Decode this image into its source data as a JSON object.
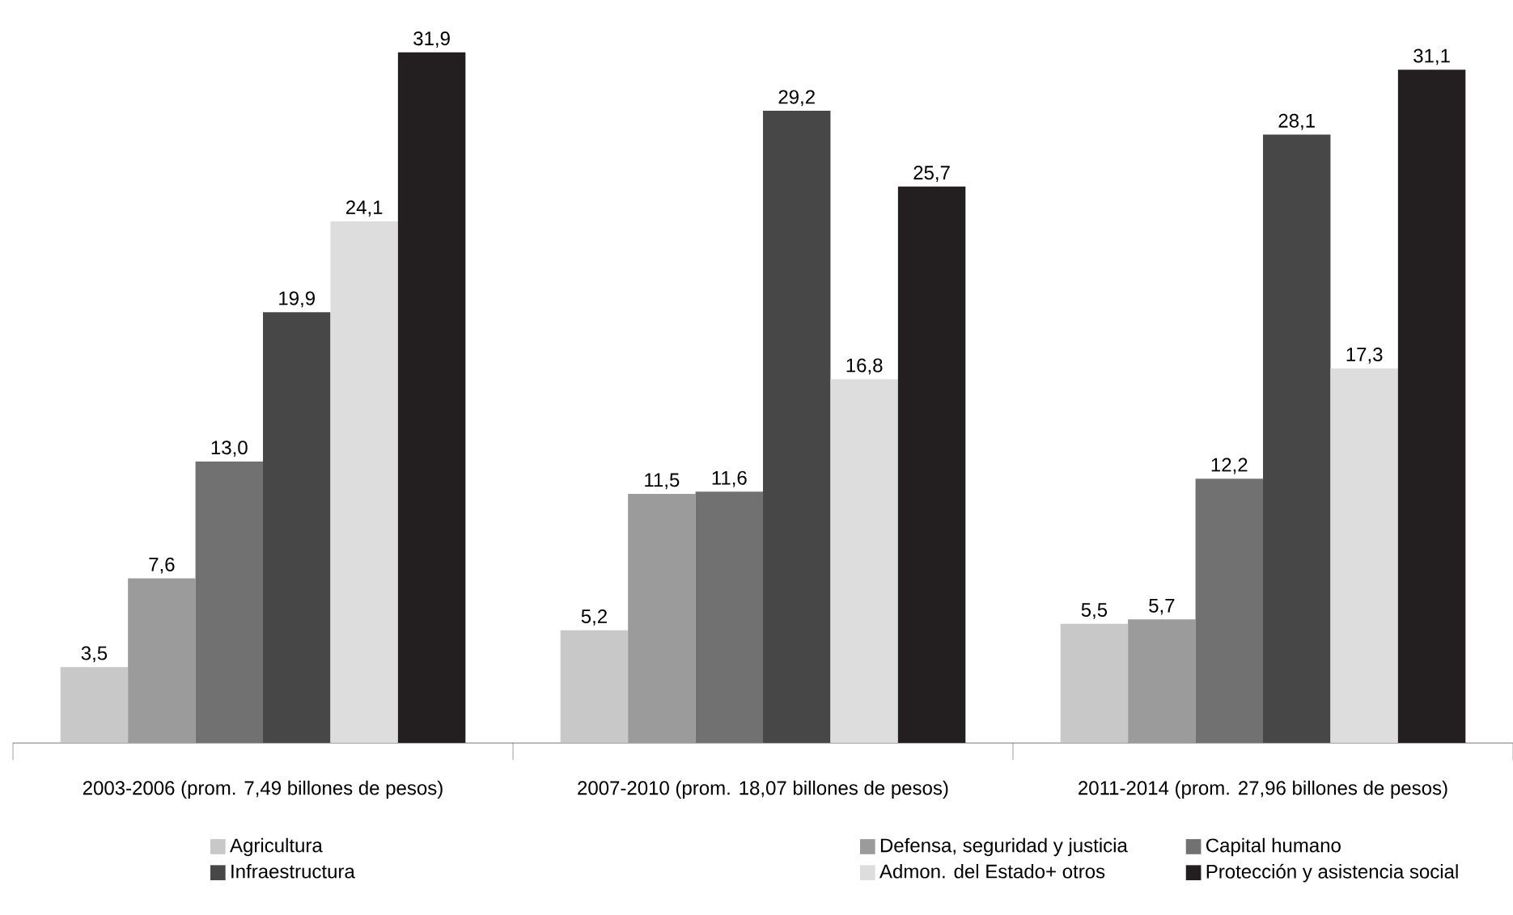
{
  "chart_data": {
    "type": "bar",
    "categories": [
      "2003-2006 (prom. 7,49 billones de pesos)",
      "2007-2010 (prom. 18,07 billones de pesos)",
      "2011-2014 (prom. 27,96 billones de pesos)"
    ],
    "series": [
      {
        "name": "Agricultura",
        "color": "#c8c8c8",
        "values": [
          3.5,
          5.2,
          5.5
        ],
        "value_labels": [
          "3,5",
          "5,2",
          "5,5"
        ]
      },
      {
        "name": "Defensa, seguridad y justicia",
        "color": "#9b9b9b",
        "values": [
          7.6,
          11.5,
          5.7
        ],
        "value_labels": [
          "7,6",
          "11,5",
          "5,7"
        ]
      },
      {
        "name": "Capital humano",
        "color": "#717171",
        "values": [
          13.0,
          11.6,
          12.2
        ],
        "value_labels": [
          "13,0",
          "11,6",
          "12,2"
        ]
      },
      {
        "name": "Infraestructura",
        "color": "#474747",
        "values": [
          19.9,
          29.2,
          28.1
        ],
        "value_labels": [
          "19,9",
          "29,2",
          "28,1"
        ]
      },
      {
        "name": "Admon. del Estado+ otros",
        "color": "#dddddd",
        "values": [
          24.1,
          16.8,
          17.3
        ],
        "value_labels": [
          "24,1",
          "16,8",
          "17,3"
        ]
      },
      {
        "name": "Protección y asistencia social",
        "color": "#231f20",
        "values": [
          31.9,
          25.7,
          31.1
        ],
        "value_labels": [
          "31,9",
          "25,7",
          "31,1"
        ]
      }
    ],
    "legend": "bottom"
  }
}
